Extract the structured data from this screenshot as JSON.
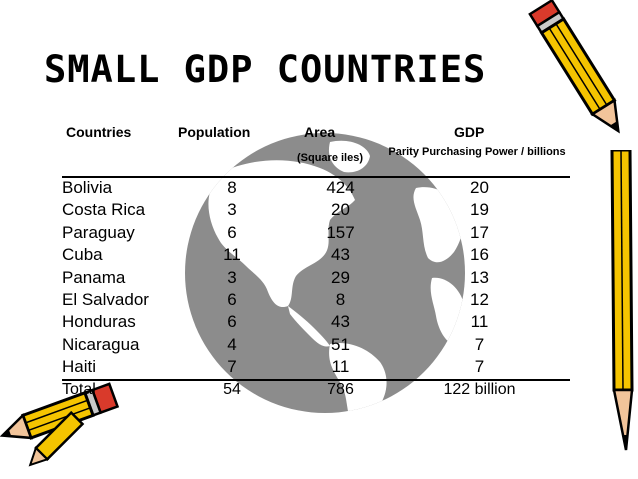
{
  "title": "SMALL GDP COUNTRIES",
  "headers": {
    "countries": "Countries",
    "population": "Population",
    "area": "Area",
    "area_unit": "(Square iles)",
    "gdp": "GDP",
    "gdp_unit": "Parity Purchasing Power / billions"
  },
  "rows": [
    {
      "country": "Bolivia",
      "population": "8",
      "area": "424",
      "gdp": "20"
    },
    {
      "country": "Costa Rica",
      "population": "3",
      "area": "20",
      "gdp": "19"
    },
    {
      "country": "Paraguay",
      "population": "6",
      "area": "157",
      "gdp": "17"
    },
    {
      "country": "Cuba",
      "population": "11",
      "area": "43",
      "gdp": "16"
    },
    {
      "country": "Panama",
      "population": "3",
      "area": "29",
      "gdp": "13"
    },
    {
      "country": "El Salvador",
      "population": "6",
      "area": "8",
      "gdp": "12"
    },
    {
      "country": "Honduras",
      "population": "6",
      "area": "43",
      "gdp": "11"
    },
    {
      "country": "Nicaragua",
      "population": "4",
      "area": "51",
      "gdp": "7"
    },
    {
      "country": "Haiti",
      "population": "7",
      "area": "11",
      "gdp": "7"
    }
  ],
  "total": {
    "label": "Total",
    "population": "54",
    "area": "786",
    "gdp": "122 billion"
  },
  "colors": {
    "globe": "#8c8c8c",
    "pencil_body": "#f5c400",
    "pencil_outline": "#000000",
    "pencil_tip": "#f2c49a",
    "pencil_eraser": "#d93a2b"
  },
  "icons": [
    "globe-clipart",
    "pencil-clipart"
  ]
}
